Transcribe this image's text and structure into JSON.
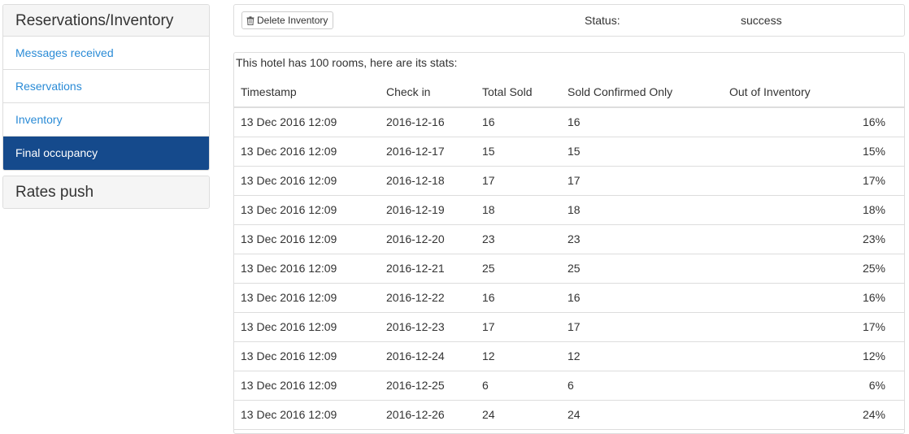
{
  "sidebar": {
    "panel1_title": "Reservations/Inventory",
    "items": [
      {
        "label": "Messages received",
        "active": false
      },
      {
        "label": "Reservations",
        "active": false
      },
      {
        "label": "Inventory",
        "active": false
      },
      {
        "label": "Final occupancy",
        "active": true
      }
    ],
    "panel2_title": "Rates push"
  },
  "toolbar": {
    "delete_label": "Delete Inventory",
    "status_label": "Status:",
    "status_value": "success"
  },
  "stats": {
    "intro": "This hotel has 100 rooms, here are its stats:",
    "columns": [
      "Timestamp",
      "Check in",
      "Total Sold",
      "Sold Confirmed Only",
      "Out of Inventory"
    ],
    "rows": [
      [
        "13 Dec 2016 12:09",
        "2016-12-16",
        "16",
        "16",
        "16%"
      ],
      [
        "13 Dec 2016 12:09",
        "2016-12-17",
        "15",
        "15",
        "15%"
      ],
      [
        "13 Dec 2016 12:09",
        "2016-12-18",
        "17",
        "17",
        "17%"
      ],
      [
        "13 Dec 2016 12:09",
        "2016-12-19",
        "18",
        "18",
        "18%"
      ],
      [
        "13 Dec 2016 12:09",
        "2016-12-20",
        "23",
        "23",
        "23%"
      ],
      [
        "13 Dec 2016 12:09",
        "2016-12-21",
        "25",
        "25",
        "25%"
      ],
      [
        "13 Dec 2016 12:09",
        "2016-12-22",
        "16",
        "16",
        "16%"
      ],
      [
        "13 Dec 2016 12:09",
        "2016-12-23",
        "17",
        "17",
        "17%"
      ],
      [
        "13 Dec 2016 12:09",
        "2016-12-24",
        "12",
        "12",
        "12%"
      ],
      [
        "13 Dec 2016 12:09",
        "2016-12-25",
        "6",
        "6",
        "6%"
      ],
      [
        "13 Dec 2016 12:09",
        "2016-12-26",
        "24",
        "24",
        "24%"
      ]
    ]
  },
  "colors": {
    "link": "#2a8bd6",
    "active_bg": "#154a8c",
    "active_text": "#ffffff",
    "heading_bg": "#f5f5f5",
    "border": "#dddddd"
  },
  "icons": {
    "delete": "trash-icon"
  }
}
